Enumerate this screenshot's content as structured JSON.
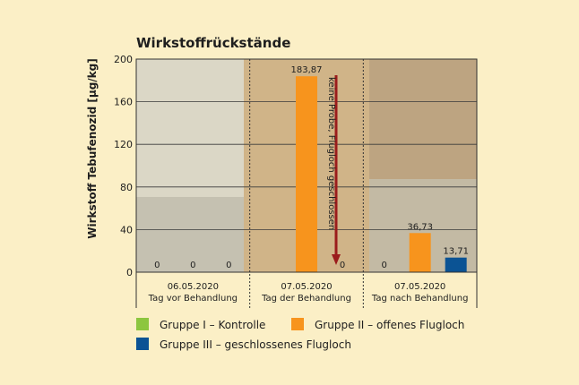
{
  "chart_data": {
    "type": "bar",
    "title": "Wirkstoffrückstände",
    "ylabel": "Wirkstoff Tebufenozid [µg/kg]",
    "xlabel": "",
    "ylim": [
      0,
      200
    ],
    "yticks": [
      0,
      40,
      80,
      120,
      160,
      200
    ],
    "grid": true,
    "legend_placement": "bottom",
    "categories": [
      {
        "date": "06.05.2020",
        "label": "Tag vor Behandlung"
      },
      {
        "date": "07.05.2020",
        "label": "Tag der Behandlung"
      },
      {
        "date": "07.05.2020",
        "label": "Tag nach Behandlung"
      }
    ],
    "series": [
      {
        "name": "Gruppe I – Kontrolle",
        "color": "#8cc63f",
        "values": [
          0,
          null,
          0
        ],
        "labels": [
          "0",
          "",
          "0"
        ]
      },
      {
        "name": "Gruppe II – offenes Flugloch",
        "color": "#f7941d",
        "values": [
          0,
          183.87,
          36.73
        ],
        "labels": [
          "0",
          "183,87",
          "36,73"
        ]
      },
      {
        "name": "Gruppe III – geschlossenes Flugloch",
        "color": "#0b5394",
        "values": [
          0,
          0,
          13.71
        ],
        "labels": [
          "0",
          "0",
          "13,71"
        ]
      }
    ],
    "annotation": {
      "text": "keine Probe, Flugloch geschlossen",
      "arrow_color": "#9b1c1c",
      "category_index": 1,
      "series_index": 0
    }
  }
}
